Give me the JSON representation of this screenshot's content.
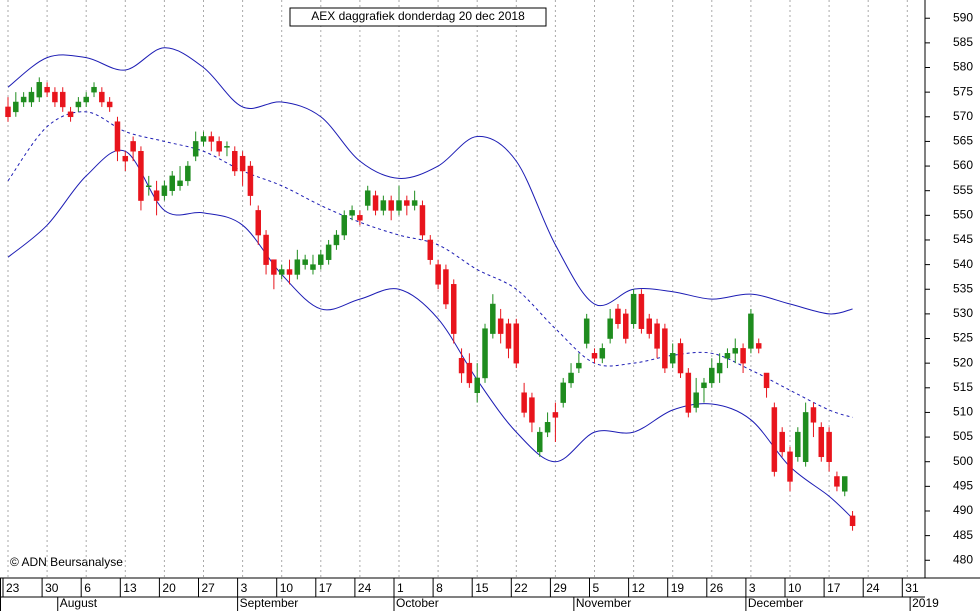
{
  "chart_data": {
    "type": "candlestick",
    "title": "AEX daggrafiek donderdag 20 dec 2018",
    "copyright": "© ADN Beursanalyse",
    "categories": [
      "23",
      null,
      null,
      null,
      null,
      "30",
      null,
      null,
      null,
      null,
      "6",
      null,
      null,
      null,
      null,
      "13",
      null,
      null,
      null,
      null,
      "20",
      null,
      null,
      null,
      null,
      "27",
      null,
      null,
      null,
      null,
      "3",
      null,
      null,
      null,
      null,
      "10",
      null,
      null,
      null,
      null,
      "17",
      null,
      null,
      null,
      null,
      "24",
      null,
      null,
      null,
      null,
      "1",
      null,
      null,
      null,
      null,
      "8",
      null,
      null,
      null,
      null,
      "15",
      null,
      null,
      null,
      null,
      "22",
      null,
      null,
      null,
      null,
      "29",
      null,
      null,
      null,
      null,
      "5",
      null,
      null,
      null,
      null,
      "12",
      null,
      null,
      null,
      null,
      "19",
      null,
      null,
      null,
      null,
      "26",
      null,
      null,
      null,
      null,
      "3",
      null,
      null,
      null,
      null,
      "10",
      null,
      null,
      null,
      null,
      "17",
      null,
      null,
      null,
      null,
      "24",
      null,
      null,
      null,
      null,
      "31",
      null
    ],
    "month_labels": [
      null,
      null,
      null,
      null,
      null,
      null,
      null,
      "August",
      null,
      null,
      null,
      null,
      null,
      null,
      null,
      null,
      null,
      null,
      null,
      null,
      null,
      null,
      null,
      null,
      null,
      null,
      null,
      null,
      null,
      null,
      "September",
      null,
      null,
      null,
      null,
      null,
      null,
      null,
      null,
      null,
      null,
      null,
      null,
      null,
      null,
      null,
      null,
      null,
      null,
      null,
      "October",
      null,
      null,
      null,
      null,
      null,
      null,
      null,
      null,
      null,
      null,
      null,
      null,
      null,
      null,
      null,
      null,
      null,
      null,
      null,
      null,
      null,
      null,
      "November",
      null,
      null,
      null,
      null,
      null,
      null,
      null,
      null,
      null,
      null,
      null,
      null,
      null,
      null,
      null,
      null,
      null,
      null,
      null,
      null,
      null,
      "December",
      null,
      null,
      null,
      null,
      null,
      null,
      null,
      null,
      null,
      null,
      null,
      null,
      null,
      null,
      null,
      null,
      null,
      null,
      null,
      null,
      "2019"
    ],
    "open": [
      572,
      571,
      573,
      573,
      574,
      576,
      575,
      575,
      571,
      572,
      573,
      575,
      575,
      573,
      569,
      562,
      565,
      563,
      556,
      555,
      554,
      555,
      556,
      557,
      562,
      565,
      566,
      565,
      564,
      563,
      562,
      560,
      551,
      546,
      541,
      538,
      539,
      538,
      540,
      539,
      540,
      541,
      544,
      546,
      550,
      550,
      552,
      554,
      551,
      553,
      551,
      553,
      552,
      552,
      545,
      540,
      539,
      536,
      521,
      520,
      514,
      517,
      526,
      529,
      528,
      528,
      514,
      513,
      502,
      506,
      510,
      512,
      516,
      519,
      524,
      522,
      521,
      525,
      531,
      530,
      528,
      534,
      529,
      528,
      527,
      520,
      524,
      518,
      511,
      515,
      516,
      518,
      521,
      522,
      523,
      523,
      524,
      518,
      511,
      506,
      502,
      501,
      500,
      511,
      507,
      506,
      497,
      494,
      489,
      null,
      null,
      null,
      null,
      null,
      null,
      null,
      null
    ],
    "high": [
      574,
      575,
      575,
      576,
      578,
      577,
      576,
      576,
      572,
      574,
      575,
      577,
      576,
      574,
      570,
      563,
      566,
      564,
      558,
      557,
      557,
      559,
      560,
      561,
      567,
      567,
      567,
      566,
      565,
      564,
      563,
      561,
      552,
      547,
      541,
      540,
      541,
      543,
      542,
      542,
      543,
      545,
      547,
      551,
      552,
      551,
      556,
      555,
      554,
      554,
      556,
      554,
      555,
      553,
      546,
      541,
      540,
      537,
      523,
      522,
      520,
      528,
      534,
      531,
      529,
      529,
      516,
      514,
      507,
      510,
      512,
      517,
      520,
      522,
      530,
      523,
      524,
      531,
      532,
      531,
      535,
      535,
      530,
      529,
      528,
      524,
      525,
      519,
      517,
      517,
      521,
      522,
      523,
      525,
      524,
      531,
      525,
      518,
      512,
      507,
      503,
      507,
      512,
      512,
      508,
      507,
      498,
      497,
      490,
      null,
      null,
      null,
      null,
      null,
      null,
      null,
      null
    ],
    "low": [
      569,
      570,
      572,
      572,
      573,
      574,
      572,
      571,
      569,
      571,
      572,
      574,
      572,
      571,
      561,
      559,
      561,
      551,
      554,
      550,
      553,
      554,
      555,
      556,
      561,
      564,
      563,
      562,
      562,
      558,
      556,
      552,
      544,
      538,
      535,
      537,
      536,
      537,
      539,
      538,
      539,
      540,
      543,
      545,
      549,
      548,
      551,
      550,
      550,
      549,
      550,
      550,
      551,
      545,
      540,
      535,
      531,
      524,
      516,
      515,
      512,
      516,
      525,
      524,
      521,
      519,
      509,
      506,
      501,
      505,
      504,
      511,
      515,
      518,
      523,
      520,
      520,
      524,
      527,
      524,
      527,
      526,
      525,
      521,
      518,
      519,
      517,
      509,
      510,
      512,
      515,
      516,
      519,
      520,
      518,
      522,
      522,
      513,
      497,
      501,
      494,
      500,
      499,
      505,
      500,
      498,
      494,
      493,
      486,
      null,
      null,
      null,
      null,
      null,
      null,
      null,
      null
    ],
    "close": [
      570,
      573,
      574,
      575,
      577,
      575,
      573,
      572,
      570,
      573,
      574,
      576,
      573,
      572,
      563,
      561,
      563,
      553,
      556,
      553,
      556,
      558,
      557,
      560,
      565,
      566,
      565,
      563,
      564,
      559,
      559,
      554,
      546,
      540,
      538,
      539,
      538,
      541,
      541,
      540,
      542,
      544,
      546,
      550,
      551,
      549,
      555,
      551,
      553,
      551,
      553,
      552,
      553,
      546,
      541,
      536,
      532,
      526,
      518,
      516,
      517,
      527,
      532,
      526,
      523,
      520,
      510,
      508,
      506,
      508,
      509,
      516,
      518,
      520,
      529,
      521,
      523,
      529,
      528,
      525,
      534,
      527,
      526,
      523,
      519,
      522,
      518,
      510,
      514,
      516,
      519,
      520,
      522,
      523,
      520,
      530,
      523,
      515,
      498,
      502,
      496,
      506,
      510,
      508,
      501,
      500,
      495,
      497,
      487,
      null,
      null,
      null,
      null,
      null,
      null,
      null,
      null
    ],
    "up_color": "#1e8c1e",
    "down_color": "#e8141c",
    "bands": {
      "color": "#1c1cb4",
      "x": [
        0,
        5,
        10,
        15,
        20,
        25,
        30,
        35,
        40,
        45,
        50,
        55,
        60,
        65,
        70,
        75,
        80,
        85,
        90,
        95,
        100,
        105,
        108
      ],
      "upper": [
        576,
        582,
        582,
        579.5,
        584,
        580,
        572,
        573,
        570,
        561,
        557.5,
        560,
        566,
        561,
        544,
        532,
        535,
        534.5,
        533,
        534,
        532,
        530,
        531
      ],
      "middle": [
        557,
        568,
        571,
        567,
        565,
        563,
        559,
        556,
        552,
        548.6,
        546,
        544,
        539,
        535,
        527,
        520,
        520,
        521.6,
        522,
        518.6,
        514.5,
        510.5,
        509
      ],
      "lower": [
        541.5,
        548,
        558,
        563,
        551,
        550.5,
        548,
        538,
        531,
        533,
        535,
        529,
        516.6,
        506,
        500,
        506,
        506,
        510.5,
        511.7,
        508.5,
        499,
        493,
        488.5
      ]
    },
    "ylim": [
      476.4,
      593.7
    ],
    "yticks": [
      480,
      485,
      490,
      495,
      500,
      505,
      510,
      515,
      520,
      525,
      530,
      535,
      540,
      545,
      550,
      555,
      560,
      565,
      570,
      575,
      580,
      585,
      590
    ],
    "grid": true
  }
}
